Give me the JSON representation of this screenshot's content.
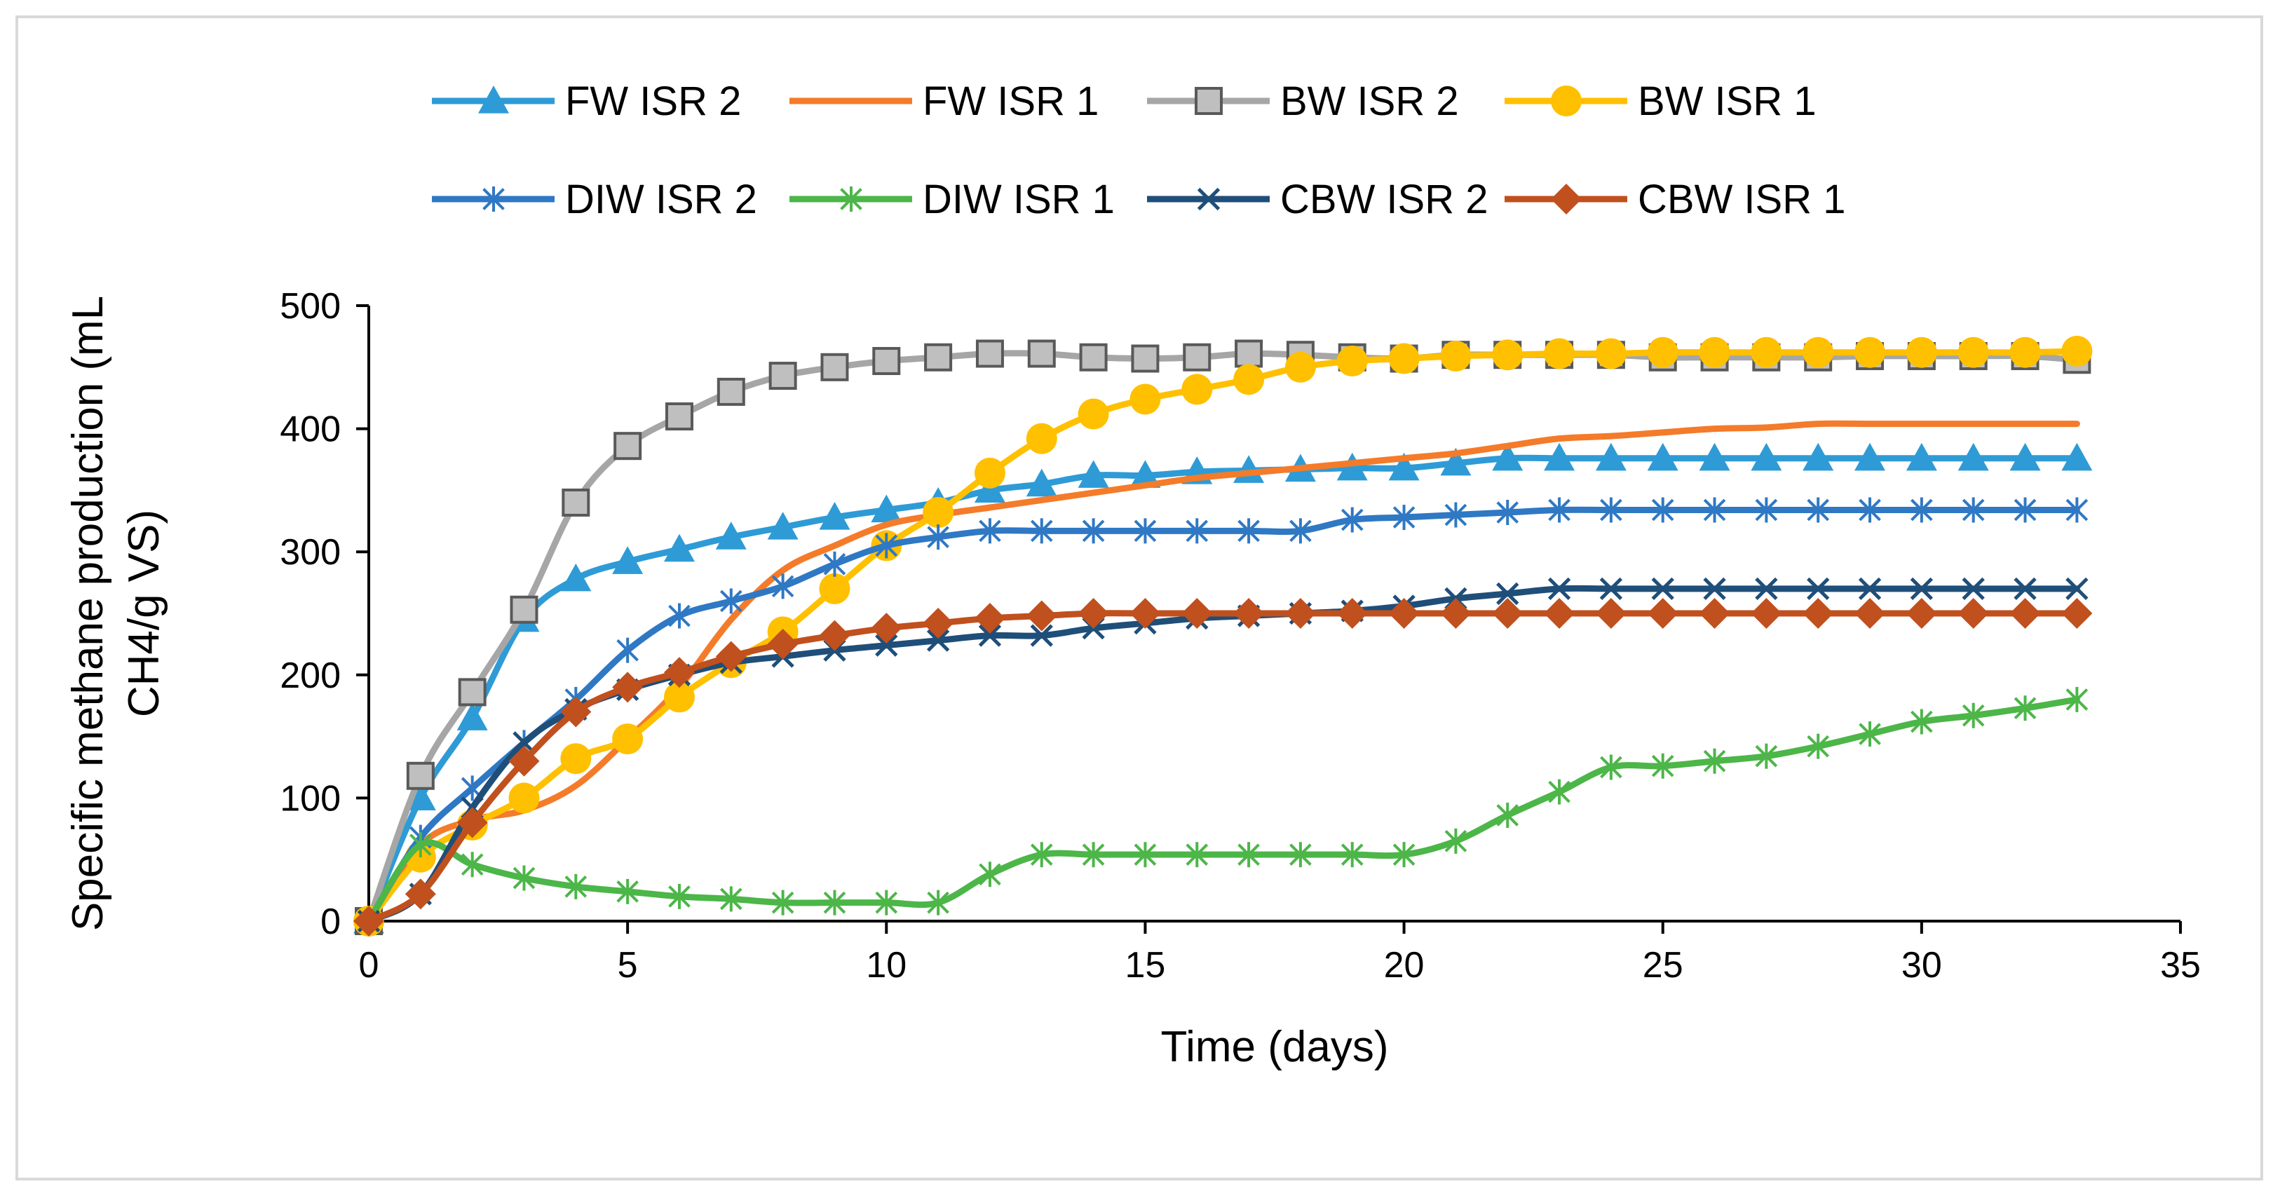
{
  "chart_data": {
    "type": "line",
    "title": "",
    "xlabel": "Time (days)",
    "ylabel_lines": [
      "Specific methane production (mL",
      "CH4/g VS)"
    ],
    "xlim": [
      0,
      35
    ],
    "ylim": [
      0,
      500
    ],
    "xticks": [
      0,
      5,
      10,
      15,
      20,
      25,
      30,
      35
    ],
    "yticks": [
      0,
      100,
      200,
      300,
      400,
      500
    ],
    "x": [
      0,
      1,
      2,
      3,
      4,
      5,
      6,
      7,
      8,
      9,
      10,
      11,
      12,
      13,
      14,
      15,
      16,
      17,
      18,
      19,
      20,
      21,
      22,
      23,
      24,
      25,
      26,
      27,
      28,
      29,
      30,
      31,
      32,
      33
    ],
    "legend_position": "top",
    "series": [
      {
        "name": "FW ISR 2",
        "color": "#2E9BD6",
        "marker": "triangle",
        "values": [
          0,
          100,
          165,
          245,
          278,
          292,
          302,
          312,
          320,
          328,
          334,
          340,
          350,
          355,
          362,
          362,
          365,
          366,
          367,
          368,
          368,
          372,
          376,
          376,
          376,
          376,
          376,
          376,
          376,
          376,
          376,
          376,
          376,
          376
        ]
      },
      {
        "name": "FW ISR 1",
        "color": "#F47B2A",
        "marker": "none",
        "values": [
          0,
          62,
          82,
          90,
          110,
          148,
          190,
          245,
          285,
          305,
          322,
          330,
          336,
          342,
          348,
          354,
          360,
          364,
          368,
          372,
          376,
          380,
          386,
          392,
          394,
          397,
          400,
          401,
          404,
          404,
          404,
          404,
          404,
          404
        ]
      },
      {
        "name": "BW ISR 2",
        "color": "#A6A6A6",
        "marker": "square",
        "values": [
          0,
          118,
          186,
          253,
          340,
          386,
          410,
          430,
          443,
          450,
          455,
          458,
          461,
          461,
          458,
          457,
          458,
          461,
          460,
          458,
          457,
          460,
          460,
          460,
          460,
          458,
          458,
          458,
          458,
          459,
          459,
          459,
          459,
          456
        ]
      },
      {
        "name": "BW ISR 1",
        "color": "#FFC000",
        "marker": "circle",
        "values": [
          0,
          52,
          78,
          100,
          132,
          148,
          182,
          210,
          235,
          270,
          305,
          332,
          364,
          392,
          412,
          424,
          432,
          440,
          450,
          455,
          457,
          459,
          460,
          461,
          461,
          462,
          462,
          462,
          462,
          462,
          462,
          462,
          462,
          463
        ]
      },
      {
        "name": "DIW ISR 2",
        "color": "#2F78C4",
        "marker": "asterisk",
        "values": [
          0,
          68,
          108,
          145,
          180,
          220,
          248,
          260,
          272,
          290,
          305,
          312,
          317,
          317,
          317,
          317,
          317,
          317,
          317,
          326,
          328,
          330,
          332,
          334,
          334,
          334,
          334,
          334,
          334,
          334,
          334,
          334,
          334,
          334
        ]
      },
      {
        "name": "DIW ISR 1",
        "color": "#4CB648",
        "marker": "asterisk",
        "values": [
          0,
          62,
          46,
          35,
          28,
          24,
          20,
          18,
          15,
          15,
          15,
          15,
          38,
          54,
          54,
          54,
          54,
          54,
          54,
          54,
          54,
          65,
          86,
          105,
          125,
          126,
          130,
          134,
          142,
          152,
          162,
          167,
          173,
          180
        ]
      },
      {
        "name": "CBW ISR 2",
        "color": "#1F4E79",
        "marker": "x",
        "values": [
          0,
          22,
          92,
          145,
          172,
          188,
          200,
          210,
          215,
          220,
          224,
          228,
          232,
          232,
          238,
          242,
          246,
          248,
          250,
          252,
          256,
          262,
          266,
          270,
          270,
          270,
          270,
          270,
          270,
          270,
          270,
          270,
          270,
          270
        ]
      },
      {
        "name": "CBW ISR 1",
        "color": "#C0501E",
        "marker": "diamond",
        "values": [
          0,
          22,
          80,
          130,
          170,
          190,
          202,
          215,
          225,
          232,
          238,
          242,
          246,
          248,
          250,
          250,
          250,
          250,
          250,
          250,
          250,
          250,
          250,
          250,
          250,
          250,
          250,
          250,
          250,
          250,
          250,
          250,
          250,
          250
        ]
      }
    ]
  }
}
